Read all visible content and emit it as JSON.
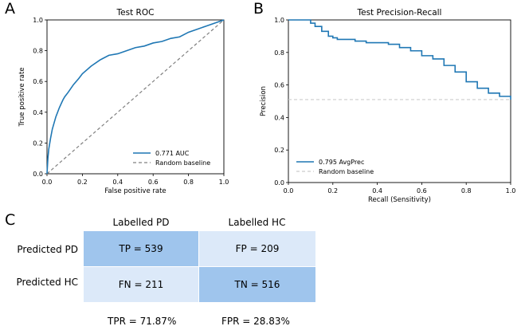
{
  "panels": {
    "a": "A",
    "b": "B",
    "c": "C"
  },
  "chart_data": [
    {
      "type": "line",
      "title": "Test ROC",
      "xlabel": "False positive rate",
      "ylabel": "True positive rate",
      "xlim": [
        0.0,
        1.0
      ],
      "ylim": [
        0.0,
        1.0
      ],
      "xticks": [
        "0.0",
        "0.2",
        "0.4",
        "0.6",
        "0.8",
        "1.0"
      ],
      "yticks": [
        "0.0",
        "0.2",
        "0.4",
        "0.6",
        "0.8",
        "1.0"
      ],
      "legend_position": "lower-right",
      "series": [
        {
          "name": "0.771 AUC",
          "color": "#1f77b4",
          "style": "solid",
          "x": [
            0,
            0.005,
            0.01,
            0.02,
            0.03,
            0.05,
            0.07,
            0.09,
            0.1,
            0.12,
            0.15,
            0.18,
            0.2,
            0.25,
            0.3,
            0.35,
            0.4,
            0.45,
            0.5,
            0.55,
            0.6,
            0.65,
            0.7,
            0.75,
            0.8,
            0.85,
            0.9,
            0.95,
            1.0
          ],
          "y": [
            0,
            0.1,
            0.16,
            0.23,
            0.29,
            0.37,
            0.43,
            0.48,
            0.5,
            0.53,
            0.58,
            0.62,
            0.65,
            0.7,
            0.74,
            0.77,
            0.78,
            0.8,
            0.82,
            0.83,
            0.85,
            0.86,
            0.88,
            0.89,
            0.92,
            0.94,
            0.96,
            0.98,
            1.0
          ]
        },
        {
          "name": "Random baseline",
          "color": "#808080",
          "style": "dashed",
          "x": [
            0,
            1
          ],
          "y": [
            0,
            1
          ]
        }
      ]
    },
    {
      "type": "line",
      "title": "Test Precision-Recall",
      "xlabel": "Recall (Sensitivity)",
      "ylabel": "Precision",
      "xlim": [
        0.0,
        1.0
      ],
      "ylim": [
        0.0,
        1.0
      ],
      "xticks": [
        "0.0",
        "0.2",
        "0.4",
        "0.6",
        "0.8",
        "1.0"
      ],
      "yticks": [
        "0.0",
        "0.2",
        "0.4",
        "0.6",
        "0.8",
        "1.0"
      ],
      "legend_position": "lower-left",
      "series": [
        {
          "name": "0.795 AvgPrec",
          "color": "#1f77b4",
          "style": "step",
          "x": [
            0,
            0.02,
            0.05,
            0.08,
            0.1,
            0.12,
            0.15,
            0.18,
            0.2,
            0.22,
            0.25,
            0.3,
            0.35,
            0.4,
            0.45,
            0.5,
            0.55,
            0.6,
            0.65,
            0.7,
            0.75,
            0.8,
            0.85,
            0.9,
            0.95,
            1.0
          ],
          "y": [
            1.0,
            1.0,
            1.0,
            1.0,
            0.98,
            0.96,
            0.93,
            0.9,
            0.89,
            0.88,
            0.88,
            0.87,
            0.86,
            0.86,
            0.85,
            0.83,
            0.81,
            0.78,
            0.76,
            0.72,
            0.68,
            0.62,
            0.58,
            0.55,
            0.53,
            0.51
          ]
        },
        {
          "name": "Random baseline",
          "color": "#cccccc",
          "style": "dashed",
          "x": [
            0,
            1
          ],
          "y": [
            0.51,
            0.51
          ]
        }
      ]
    },
    {
      "type": "table",
      "columns": [
        "Labelled PD",
        "Labelled HC"
      ],
      "rows": [
        "Predicted PD",
        "Predicted HC"
      ],
      "cells": [
        [
          {
            "text": "TP = 539",
            "color": "#9fc5ed"
          },
          {
            "text": "FP = 209",
            "color": "#dce9f9"
          }
        ],
        [
          {
            "text": "FN = 211",
            "color": "#dce9f9"
          },
          {
            "text": "TN = 516",
            "color": "#9fc5ed"
          }
        ]
      ],
      "footer": [
        "TPR = 71.87%",
        "FPR = 28.83%"
      ]
    }
  ]
}
